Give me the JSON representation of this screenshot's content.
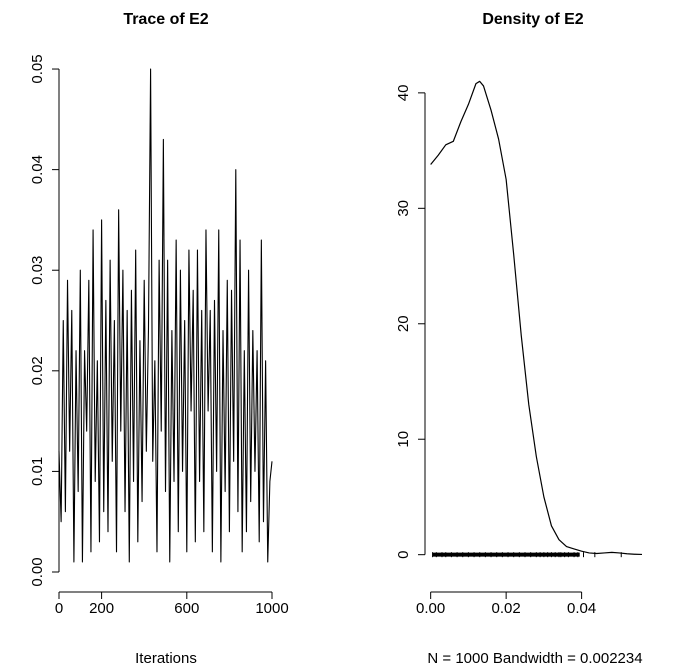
{
  "chart_data": [
    {
      "type": "line",
      "title": "Trace of E2",
      "xlabel": "Iterations",
      "ylabel": "",
      "xlim": [
        0,
        1000
      ],
      "ylim": [
        0,
        0.0505
      ],
      "x_ticks": [
        0,
        200,
        600,
        1000
      ],
      "x_tick_labels": [
        "0",
        "200",
        "600",
        "1000"
      ],
      "y_ticks": [
        0,
        0.01,
        0.02,
        0.03,
        0.04,
        0.05
      ],
      "y_tick_labels": [
        "0.00",
        "0.01",
        "0.02",
        "0.03",
        "0.04",
        "0.05"
      ],
      "grid": false,
      "series": [
        {
          "x": [
            0,
            10,
            20,
            30,
            40,
            50,
            60,
            70,
            80,
            90,
            100,
            110,
            120,
            130,
            140,
            150,
            160,
            170,
            180,
            190,
            200,
            210,
            220,
            230,
            240,
            250,
            260,
            270,
            280,
            290,
            300,
            310,
            320,
            330,
            340,
            350,
            360,
            370,
            380,
            390,
            400,
            410,
            420,
            430,
            440,
            450,
            460,
            470,
            480,
            490,
            500,
            510,
            520,
            530,
            540,
            550,
            560,
            570,
            580,
            590,
            600,
            610,
            620,
            630,
            640,
            650,
            660,
            670,
            680,
            690,
            700,
            710,
            720,
            730,
            740,
            750,
            760,
            770,
            780,
            790,
            800,
            810,
            820,
            830,
            840,
            850,
            860,
            870,
            880,
            890,
            900,
            910,
            920,
            930,
            940,
            950,
            960,
            970,
            980,
            990,
            1000
          ],
          "values": [
            0.012,
            0.005,
            0.025,
            0.006,
            0.029,
            0.012,
            0.026,
            0.001,
            0.022,
            0.008,
            0.03,
            0.001,
            0.022,
            0.014,
            0.029,
            0.002,
            0.034,
            0.009,
            0.021,
            0.003,
            0.035,
            0.006,
            0.027,
            0.004,
            0.031,
            0.011,
            0.025,
            0.002,
            0.036,
            0.014,
            0.03,
            0.006,
            0.026,
            0.001,
            0.028,
            0.009,
            0.032,
            0.003,
            0.023,
            0.007,
            0.029,
            0.012,
            0.024,
            0.05,
            0.011,
            0.021,
            0.002,
            0.031,
            0.014,
            0.043,
            0.008,
            0.031,
            0.001,
            0.024,
            0.009,
            0.033,
            0.004,
            0.03,
            0.01,
            0.025,
            0.002,
            0.032,
            0.016,
            0.028,
            0.003,
            0.032,
            0.009,
            0.026,
            0.004,
            0.034,
            0.016,
            0.026,
            0.002,
            0.027,
            0.01,
            0.034,
            0.001,
            0.024,
            0.008,
            0.029,
            0.004,
            0.028,
            0.011,
            0.04,
            0.006,
            0.033,
            0.002,
            0.022,
            0.004,
            0.03,
            0.007,
            0.024,
            0.01,
            0.022,
            0.003,
            0.033,
            0.005,
            0.021,
            0.001,
            0.009,
            0.011
          ]
        }
      ]
    },
    {
      "type": "area",
      "title": "Density of E2",
      "xlabel": "N = 1000   Bandwidth = 0.002234",
      "ylabel": "",
      "xlim": [
        -0.0015,
        0.056
      ],
      "ylim": [
        -1.5,
        42.5
      ],
      "x_ticks": [
        0,
        0.02,
        0.04
      ],
      "x_tick_labels": [
        "0.00",
        "0.02",
        "0.04"
      ],
      "y_ticks": [
        0,
        10,
        20,
        30,
        40
      ],
      "y_tick_labels": [
        "0",
        "10",
        "20",
        "30",
        "40"
      ],
      "grid": false,
      "series": [
        {
          "x": [
            0.0,
            0.002,
            0.004,
            0.006,
            0.008,
            0.01,
            0.012,
            0.013,
            0.014,
            0.016,
            0.018,
            0.02,
            0.022,
            0.024,
            0.026,
            0.028,
            0.03,
            0.032,
            0.034,
            0.036,
            0.038,
            0.04,
            0.042,
            0.044,
            0.046,
            0.048,
            0.05,
            0.052,
            0.054,
            0.056
          ],
          "values": [
            33.8,
            34.6,
            35.5,
            35.8,
            37.5,
            39.0,
            40.8,
            41.0,
            40.6,
            38.5,
            36.0,
            32.5,
            26.0,
            19.0,
            13.0,
            8.5,
            5.0,
            2.5,
            1.3,
            0.7,
            0.5,
            0.3,
            0.15,
            0.1,
            0.15,
            0.2,
            0.15,
            0.08,
            0.04,
            0.02
          ]
        }
      ],
      "rug": [
        0.0005,
        0.0015,
        0.003,
        0.004,
        0.0055,
        0.007,
        0.0085,
        0.01,
        0.0115,
        0.013,
        0.0145,
        0.016,
        0.0175,
        0.019,
        0.0205,
        0.022,
        0.0235,
        0.025,
        0.0265,
        0.028,
        0.029,
        0.03,
        0.031,
        0.032,
        0.033,
        0.034,
        0.0345,
        0.0355,
        0.0365,
        0.038,
        0.039,
        0.0405,
        0.0435,
        0.0505
      ]
    }
  ]
}
